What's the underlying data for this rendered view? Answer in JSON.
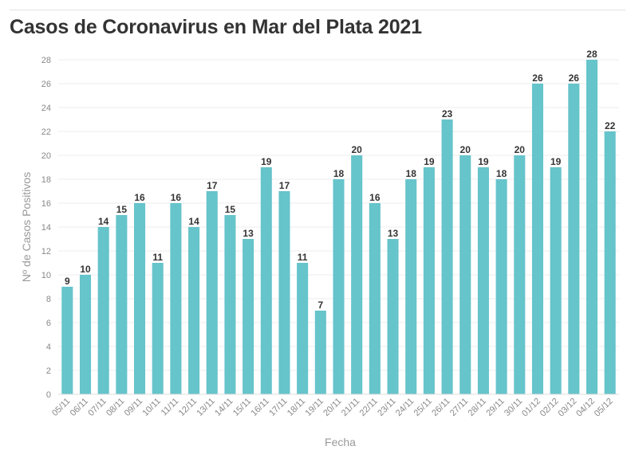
{
  "chart_data": {
    "type": "bar",
    "title": "Casos de Coronavirus en Mar del Plata 2021",
    "xlabel": "Fecha",
    "ylabel": "Nº de Casos Positivos",
    "ylim": [
      0,
      28
    ],
    "yticks": [
      0,
      2,
      4,
      6,
      8,
      10,
      12,
      14,
      16,
      18,
      20,
      22,
      24,
      26,
      28
    ],
    "grid": true,
    "bar_color": "#66c4cb",
    "categories": [
      "05/11",
      "06/11",
      "07/11",
      "08/11",
      "09/11",
      "10/11",
      "11/11",
      "12/11",
      "13/11",
      "14/11",
      "15/11",
      "16/11",
      "17/11",
      "18/11",
      "19/11",
      "20/11",
      "21/11",
      "22/11",
      "23/11",
      "24/11",
      "25/11",
      "26/11",
      "27/11",
      "28/11",
      "29/11",
      "30/11",
      "01/12",
      "02/12",
      "03/12",
      "04/12",
      "05/12"
    ],
    "values": [
      9,
      10,
      14,
      15,
      16,
      11,
      16,
      14,
      17,
      15,
      13,
      19,
      17,
      11,
      7,
      18,
      20,
      16,
      13,
      18,
      19,
      23,
      20,
      19,
      18,
      20,
      26,
      19,
      26,
      28,
      22
    ]
  }
}
